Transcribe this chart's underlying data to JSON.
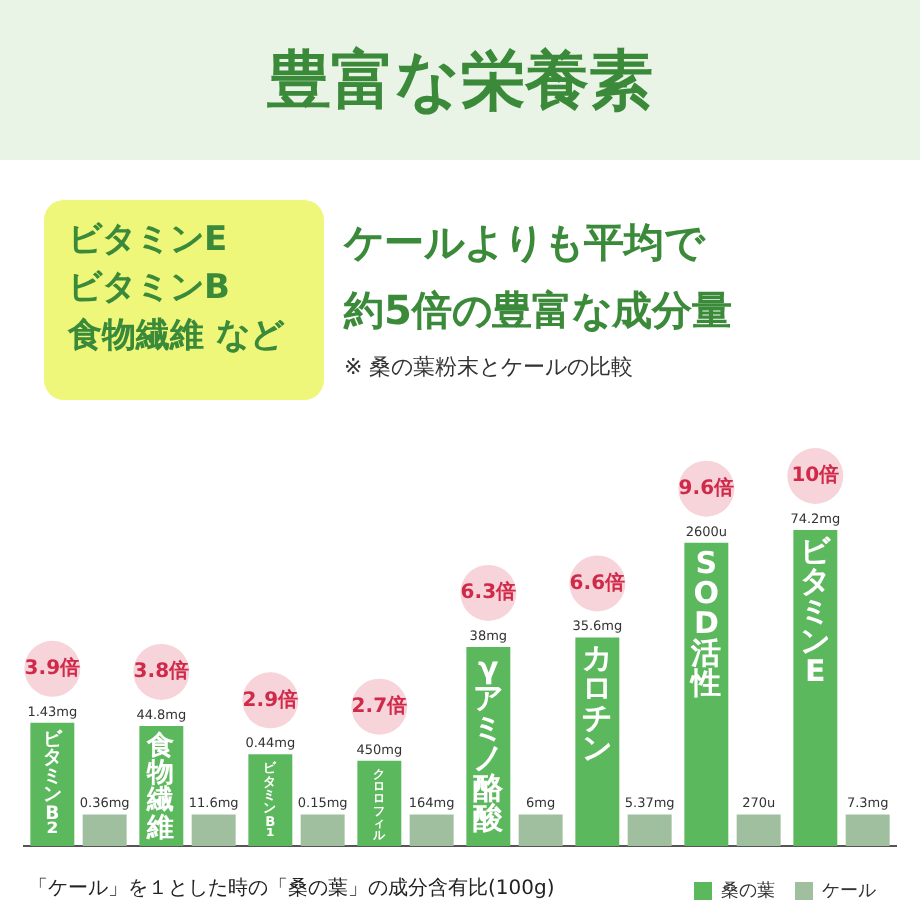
{
  "chart_data": {
    "type": "bar",
    "title": "豊富な栄養素",
    "legend": "bottom right",
    "categories": [
      "ビタミンB₂",
      "食物繊維",
      "ビタミンB₁",
      "クロロフィル",
      "γアミノ酪酸",
      "カロチン",
      "SOD活性",
      "ビタミンE"
    ],
    "series": [
      {
        "name": "桑の葉",
        "color": "#5cb85c",
        "values": [
          3.9,
          3.8,
          2.9,
          2.7,
          6.3,
          6.6,
          9.6,
          10
        ],
        "value_labels": [
          "3.9倍",
          "3.8倍",
          "2.9倍",
          "2.7倍",
          "6.3倍",
          "6.6倍",
          "9.6倍",
          "10倍"
        ]
      },
      {
        "name": "ケール",
        "color": "#9fbf9f",
        "values": [
          1,
          1,
          1,
          1,
          1,
          1,
          1,
          1
        ]
      }
    ],
    "annotations": [
      "ビタミンE",
      "ビタミンB",
      "食物繊維 など",
      "ケールよりも平均で",
      "約5倍の豊富な成分量",
      "※ 桑の葉粉末とケールの比較",
      "「ケール」を１とした時の「桑の葉」の成分含有比(100g)",
      "1.43mg",
      "44.8mg",
      "0.44mg",
      "450mg",
      "38mg",
      "35.6mg",
      "2600u",
      "74.2mg",
      "0.36mg",
      "11.6mg",
      "0.15mg",
      "164mg",
      "6mg",
      "5.37mg",
      "270u",
      "7.3mg"
    ]
  }
}
